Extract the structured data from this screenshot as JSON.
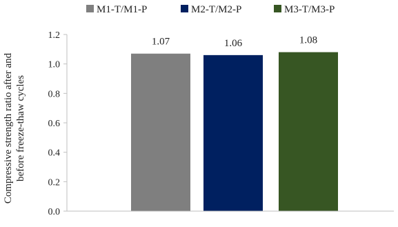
{
  "chart_data": {
    "type": "bar",
    "title": "",
    "xlabel": "",
    "ylabel_lines": [
      "Compressive strength ratio after and",
      "before freeze-thaw cycles"
    ],
    "ylim": [
      0,
      1.2
    ],
    "yticks": [
      0.0,
      0.2,
      0.4,
      0.6,
      0.8,
      1.0,
      1.2
    ],
    "ytick_labels": [
      "0.0",
      "0.2",
      "0.4",
      "0.6",
      "0.8",
      "1.0",
      "1.2"
    ],
    "grid": false,
    "legend_position": "top",
    "series": [
      {
        "name": "M1-T/M1-P",
        "value": 1.07,
        "label": "1.07",
        "color": "#7f7f7f"
      },
      {
        "name": "M2-T/M2-P",
        "value": 1.06,
        "label": "1.06",
        "color": "#002060"
      },
      {
        "name": "M3-T/M3-P",
        "value": 1.08,
        "label": "1.08",
        "color": "#375623"
      }
    ]
  }
}
